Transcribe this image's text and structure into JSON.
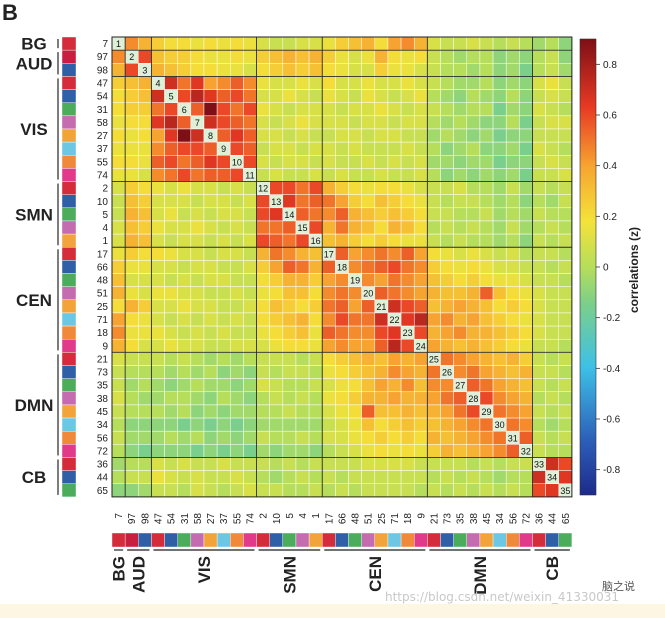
{
  "panel_label": "B",
  "colorbar": {
    "label": "correlations (z)",
    "ticks": [
      0.8,
      0.6,
      0.4,
      0.2,
      0,
      -0.2,
      -0.4,
      -0.6,
      -0.8
    ],
    "tick_labels": [
      "0.8",
      "0.6",
      "0.4",
      "0.2",
      "0",
      "-0.2",
      "-0.4",
      "-0.6",
      "-0.8"
    ],
    "range": [
      -0.9,
      0.9
    ]
  },
  "groups": [
    {
      "name": "BG",
      "count": 1
    },
    {
      "name": "AUD",
      "count": 2
    },
    {
      "name": "VIS",
      "count": 8
    },
    {
      "name": "SMN",
      "count": 5
    },
    {
      "name": "CEN",
      "count": 8
    },
    {
      "name": "DMN",
      "count": 8
    },
    {
      "name": "CB",
      "count": 3
    }
  ],
  "component_colors": [
    "#d42c3b",
    "#c81e40",
    "#2f5fa7",
    "#d42c3b",
    "#2f5fa7",
    "#4bad5b",
    "#c56cb1",
    "#f2a43a",
    "#6cc7e4",
    "#f08a3a",
    "#e23a8a",
    "#d42c3b",
    "#2f5fa7",
    "#4bad5b",
    "#c56cb1",
    "#f2a43a",
    "#d42c3b",
    "#2f5fa7",
    "#4bad5b",
    "#c56cb1",
    "#f2a43a",
    "#6cc7e4",
    "#f08a3a",
    "#e23a8a",
    "#d42c3b",
    "#2f5fa7",
    "#4bad5b",
    "#c56cb1",
    "#f2a43a",
    "#6cc7e4",
    "#f08a3a",
    "#e23a8a",
    "#d42c3b",
    "#2f5fa7",
    "#4bad5b"
  ],
  "watermark": "https://blog.csdn.net/weixin_41330031",
  "brand_text": "脑之说",
  "chart_data": {
    "type": "heatmap",
    "labels": [
      "7",
      "97",
      "98",
      "47",
      "54",
      "31",
      "58",
      "27",
      "37",
      "55",
      "74",
      "2",
      "10",
      "5",
      "4",
      "1",
      "17",
      "66",
      "48",
      "51",
      "25",
      "71",
      "18",
      "9",
      "21",
      "73",
      "35",
      "38",
      "45",
      "34",
      "56",
      "72",
      "36",
      "44",
      "65"
    ],
    "diagonal_labels": [
      "1",
      "2",
      "3",
      "4",
      "5",
      "6",
      "7",
      "8",
      "9",
      "10",
      "11",
      "12",
      "13",
      "14",
      "15",
      "16",
      "17",
      "18",
      "19",
      "20",
      "21",
      "22",
      "23",
      "24",
      "25",
      "26",
      "27",
      "28",
      "29",
      "30",
      "31",
      "32",
      "33",
      "34",
      "35"
    ],
    "value_range": [
      -0.9,
      0.9
    ],
    "matrix": [
      [
        null,
        0.45,
        0.35,
        0.25,
        0.2,
        0.2,
        0.15,
        0.2,
        0.15,
        0.2,
        0.15,
        0.1,
        0.05,
        0.05,
        0.1,
        0.1,
        0.15,
        0.25,
        0.3,
        0.35,
        0.2,
        0.4,
        0.45,
        0.35,
        0.1,
        0.05,
        0.05,
        0.1,
        0.05,
        0,
        0.05,
        0,
        -0.05,
        0,
        -0.1
      ],
      [
        0.45,
        null,
        0.6,
        0.3,
        0.25,
        0.25,
        0.2,
        0.15,
        0.15,
        0.2,
        0.15,
        0.25,
        0.3,
        0.35,
        0.3,
        0.35,
        0.25,
        0.15,
        0.1,
        0.15,
        0.35,
        0.2,
        0.15,
        0.2,
        0.05,
        0,
        -0.05,
        0,
        0,
        -0.1,
        -0.05,
        -0.1,
        0,
        0.05,
        -0.1
      ],
      [
        0.35,
        0.6,
        null,
        0.35,
        0.3,
        0.25,
        0.2,
        0.2,
        0.15,
        0.15,
        0.1,
        0.2,
        0.25,
        0.3,
        0.25,
        0.3,
        0.2,
        0.15,
        0.1,
        0.1,
        0.25,
        0.15,
        0.15,
        0.1,
        0.05,
        0,
        0,
        -0.05,
        0,
        -0.1,
        -0.05,
        -0.15,
        0,
        0.05,
        -0.05
      ],
      [
        0.25,
        0.3,
        0.35,
        null,
        0.7,
        0.5,
        0.65,
        0.4,
        0.45,
        0.55,
        0.45,
        0.15,
        0.1,
        0.1,
        0.15,
        0.1,
        0.2,
        0.1,
        0.1,
        0.15,
        0.1,
        0.1,
        0.15,
        0.1,
        0.05,
        0,
        -0.05,
        -0.05,
        0,
        -0.1,
        -0.05,
        -0.1,
        0.1,
        0.15,
        0.05
      ],
      [
        0.2,
        0.25,
        0.3,
        0.7,
        null,
        0.6,
        0.75,
        0.65,
        0.55,
        0.6,
        0.5,
        0.1,
        0.1,
        0.15,
        0.1,
        0.05,
        0.15,
        0.1,
        0.05,
        0.15,
        0.1,
        0.05,
        0.1,
        0.15,
        0,
        -0.05,
        -0.1,
        0,
        -0.05,
        -0.1,
        0,
        -0.1,
        0.05,
        0.1,
        0.05
      ],
      [
        0.2,
        0.25,
        0.25,
        0.5,
        0.6,
        null,
        0.55,
        0.9,
        0.6,
        0.5,
        0.6,
        0.15,
        0.1,
        0.05,
        0.1,
        0.1,
        0.1,
        0.05,
        0.1,
        0.1,
        0.15,
        0.1,
        0.05,
        0.1,
        0.05,
        0,
        -0.05,
        0,
        0,
        -0.15,
        -0.05,
        -0.1,
        0.1,
        0.05,
        0
      ],
      [
        0.15,
        0.2,
        0.2,
        0.65,
        0.75,
        0.55,
        null,
        0.7,
        0.6,
        0.55,
        0.5,
        0.1,
        0.05,
        0.1,
        0.15,
        0.1,
        0.1,
        0.1,
        0.05,
        0.1,
        0.1,
        0.05,
        0.1,
        0.1,
        0,
        -0.05,
        0,
        -0.05,
        -0.1,
        -0.1,
        0,
        -0.15,
        0.05,
        0.1,
        0.1
      ],
      [
        0.2,
        0.15,
        0.2,
        0.4,
        0.65,
        0.9,
        0.7,
        null,
        0.55,
        0.65,
        0.55,
        0.1,
        0.1,
        0.05,
        0.1,
        0.05,
        0.05,
        0.1,
        0.1,
        0.05,
        0.1,
        0.1,
        0.05,
        0.05,
        -0.05,
        0,
        -0.05,
        -0.1,
        -0.05,
        -0.15,
        -0.1,
        -0.1,
        0.05,
        0.05,
        0.05
      ],
      [
        0.15,
        0.15,
        0.15,
        0.45,
        0.55,
        0.6,
        0.6,
        0.55,
        null,
        0.6,
        0.55,
        0.05,
        0.1,
        0.1,
        0.05,
        0.1,
        0.1,
        0.05,
        0.1,
        0.05,
        0.05,
        0.05,
        0.1,
        0.05,
        0,
        -0.1,
        -0.05,
        0,
        -0.1,
        -0.1,
        -0.05,
        -0.15,
        0.1,
        0.05,
        0
      ],
      [
        0.2,
        0.2,
        0.15,
        0.55,
        0.6,
        0.5,
        0.55,
        0.65,
        0.6,
        null,
        0.6,
        0.1,
        0.05,
        0.1,
        0.1,
        0.05,
        0.1,
        0.05,
        0.05,
        0.1,
        0.05,
        0.1,
        0.05,
        0.1,
        -0.05,
        -0.05,
        -0.1,
        -0.05,
        -0.05,
        -0.15,
        -0.1,
        -0.1,
        0.05,
        0.1,
        0.05
      ],
      [
        0.15,
        0.15,
        0.1,
        0.45,
        0.5,
        0.6,
        0.5,
        0.55,
        0.55,
        0.6,
        null,
        0.05,
        0.1,
        0.05,
        0.05,
        0.1,
        0.05,
        0.1,
        0.05,
        0.05,
        0.1,
        0.05,
        0.05,
        0.1,
        0,
        -0.1,
        -0.05,
        -0.1,
        -0.05,
        -0.1,
        -0.05,
        -0.15,
        0.05,
        0.05,
        0.1
      ],
      [
        0.1,
        0.25,
        0.2,
        0.15,
        0.1,
        0.15,
        0.1,
        0.1,
        0.05,
        0.1,
        0.05,
        null,
        0.6,
        0.6,
        0.5,
        0.6,
        0.35,
        0.25,
        0.2,
        0.15,
        0.2,
        0.2,
        0.15,
        0.1,
        0.05,
        0.05,
        0.1,
        0,
        0,
        -0.05,
        0.05,
        -0.05,
        0.05,
        0,
        0.05
      ],
      [
        0.05,
        0.3,
        0.25,
        0.1,
        0.1,
        0.1,
        0.05,
        0.1,
        0.1,
        0.05,
        0.1,
        0.6,
        null,
        0.65,
        0.5,
        0.55,
        0.5,
        0.4,
        0.25,
        0.2,
        0.3,
        0.25,
        0.2,
        0.15,
        0.05,
        0,
        0.05,
        0.05,
        0,
        -0.05,
        0,
        -0.1,
        0,
        -0.05,
        0.05
      ],
      [
        0.05,
        0.35,
        0.3,
        0.1,
        0.15,
        0.05,
        0.1,
        0.05,
        0.1,
        0.1,
        0.05,
        0.6,
        0.65,
        null,
        0.55,
        0.5,
        0.45,
        0.55,
        0.35,
        0.3,
        0.25,
        0.3,
        0.25,
        0.2,
        0.05,
        0.05,
        0,
        0,
        0.05,
        -0.05,
        0,
        -0.05,
        0.05,
        0,
        0
      ],
      [
        0.1,
        0.3,
        0.25,
        0.15,
        0.1,
        0.1,
        0.15,
        0.1,
        0.05,
        0.1,
        0.05,
        0.5,
        0.5,
        0.55,
        null,
        0.6,
        0.35,
        0.5,
        0.35,
        0.3,
        0.2,
        0.35,
        0.3,
        0.2,
        0,
        0.05,
        0,
        0.05,
        0,
        -0.05,
        0.05,
        -0.05,
        0,
        0.05,
        0
      ],
      [
        0.1,
        0.35,
        0.3,
        0.1,
        0.05,
        0.1,
        0.1,
        0.05,
        0.1,
        0.05,
        0.1,
        0.6,
        0.55,
        0.5,
        0.6,
        null,
        0.3,
        0.35,
        0.25,
        0.2,
        0.25,
        0.2,
        0.15,
        0.15,
        0.05,
        0,
        0.05,
        0,
        0,
        -0.05,
        0,
        -0.1,
        0.05,
        0,
        0.05
      ],
      [
        0.15,
        0.25,
        0.2,
        0.2,
        0.15,
        0.1,
        0.1,
        0.05,
        0.1,
        0.1,
        0.05,
        0.35,
        0.5,
        0.45,
        0.35,
        0.3,
        null,
        0.55,
        0.4,
        0.45,
        0.5,
        0.45,
        0.55,
        0.4,
        0.2,
        0.15,
        0.1,
        0.15,
        0.1,
        0.05,
        0.1,
        0,
        0.05,
        0.05,
        0
      ],
      [
        0.25,
        0.15,
        0.15,
        0.1,
        0.1,
        0.05,
        0.1,
        0.1,
        0.05,
        0.05,
        0.1,
        0.25,
        0.4,
        0.55,
        0.5,
        0.35,
        0.55,
        null,
        0.45,
        0.5,
        0.55,
        0.6,
        0.5,
        0.45,
        0.25,
        0.2,
        0.15,
        0.2,
        0.15,
        0.1,
        0.1,
        0.05,
        0.05,
        0,
        0.05
      ],
      [
        0.3,
        0.1,
        0.1,
        0.1,
        0.05,
        0.1,
        0.05,
        0.1,
        0.1,
        0.05,
        0.05,
        0.2,
        0.25,
        0.35,
        0.35,
        0.25,
        0.4,
        0.45,
        null,
        0.45,
        0.4,
        0.5,
        0.45,
        0.4,
        0.3,
        0.25,
        0.2,
        0.25,
        0.2,
        0.15,
        0.15,
        0.1,
        0.05,
        0.05,
        0
      ],
      [
        0.35,
        0.15,
        0.1,
        0.15,
        0.15,
        0.1,
        0.1,
        0.05,
        0.05,
        0.1,
        0.05,
        0.15,
        0.2,
        0.3,
        0.3,
        0.2,
        0.45,
        0.5,
        0.45,
        null,
        0.55,
        0.5,
        0.45,
        0.4,
        0.35,
        0.3,
        0.3,
        0.35,
        0.55,
        0.3,
        0.2,
        0.15,
        0.1,
        0.05,
        0.05
      ],
      [
        0.2,
        0.35,
        0.25,
        0.1,
        0.1,
        0.15,
        0.1,
        0.1,
        0.05,
        0.05,
        0.1,
        0.2,
        0.3,
        0.25,
        0.2,
        0.25,
        0.5,
        0.55,
        0.4,
        0.55,
        null,
        0.7,
        0.6,
        0.55,
        0.3,
        0.35,
        0.4,
        0.35,
        0.3,
        0.2,
        0.25,
        0.2,
        0.1,
        0.05,
        0.05
      ],
      [
        0.4,
        0.2,
        0.15,
        0.1,
        0.05,
        0.1,
        0.05,
        0.1,
        0.05,
        0.1,
        0.05,
        0.2,
        0.25,
        0.3,
        0.35,
        0.2,
        0.45,
        0.6,
        0.5,
        0.5,
        0.7,
        null,
        0.65,
        0.75,
        0.4,
        0.45,
        0.35,
        0.4,
        0.3,
        0.25,
        0.2,
        0.15,
        0.1,
        0.05,
        0.05
      ],
      [
        0.45,
        0.15,
        0.15,
        0.15,
        0.1,
        0.05,
        0.1,
        0.05,
        0.1,
        0.05,
        0.05,
        0.15,
        0.2,
        0.25,
        0.3,
        0.15,
        0.55,
        0.5,
        0.45,
        0.45,
        0.6,
        0.65,
        null,
        0.6,
        0.35,
        0.4,
        0.45,
        0.35,
        0.35,
        0.3,
        0.25,
        0.2,
        0.1,
        0.05,
        0.05
      ],
      [
        0.35,
        0.2,
        0.1,
        0.1,
        0.15,
        0.1,
        0.1,
        0.05,
        0.05,
        0.1,
        0.1,
        0.1,
        0.15,
        0.2,
        0.2,
        0.15,
        0.4,
        0.45,
        0.4,
        0.4,
        0.55,
        0.75,
        0.6,
        null,
        0.4,
        0.35,
        0.3,
        0.35,
        0.3,
        0.25,
        0.2,
        0.15,
        0.05,
        0.05,
        0
      ],
      [
        0.1,
        0.05,
        0.05,
        0.05,
        0,
        0.05,
        0,
        -0.05,
        0,
        -0.05,
        0,
        0.05,
        0.05,
        0.05,
        0,
        0.05,
        0.2,
        0.25,
        0.3,
        0.35,
        0.3,
        0.4,
        0.35,
        0.4,
        null,
        0.5,
        0.45,
        0.4,
        0.35,
        0.3,
        0.35,
        0.25,
        0.05,
        0,
        0.05
      ],
      [
        0.05,
        0,
        0,
        0,
        -0.05,
        0,
        -0.05,
        0,
        -0.1,
        -0.05,
        -0.1,
        0.05,
        0,
        0.05,
        0.05,
        0,
        0.15,
        0.2,
        0.25,
        0.3,
        0.35,
        0.45,
        0.4,
        0.35,
        0.5,
        null,
        0.45,
        0.5,
        0.4,
        0.35,
        0.3,
        0.35,
        0.05,
        0.05,
        0
      ],
      [
        0.05,
        -0.05,
        0,
        -0.05,
        -0.1,
        -0.05,
        0,
        -0.05,
        -0.05,
        -0.1,
        -0.05,
        0.1,
        0.05,
        0,
        0,
        0.05,
        0.1,
        0.15,
        0.2,
        0.3,
        0.4,
        0.35,
        0.45,
        0.3,
        0.45,
        0.45,
        null,
        0.55,
        0.5,
        0.4,
        0.35,
        0.3,
        0.05,
        0,
        0.05
      ],
      [
        0.1,
        0,
        -0.05,
        -0.05,
        0,
        0,
        -0.05,
        -0.1,
        0,
        -0.05,
        -0.1,
        0,
        0.05,
        0,
        0.05,
        0,
        0.15,
        0.2,
        0.25,
        0.35,
        0.35,
        0.4,
        0.35,
        0.35,
        0.4,
        0.5,
        0.55,
        null,
        0.6,
        0.45,
        0.4,
        0.35,
        0,
        0.05,
        0
      ],
      [
        0.05,
        0,
        0,
        0,
        -0.05,
        0,
        -0.1,
        -0.05,
        -0.1,
        -0.05,
        -0.05,
        0,
        0,
        0.05,
        0,
        0,
        0.1,
        0.15,
        0.2,
        0.55,
        0.3,
        0.3,
        0.35,
        0.3,
        0.35,
        0.4,
        0.5,
        0.6,
        null,
        0.5,
        0.45,
        0.4,
        0.05,
        0,
        0.05
      ],
      [
        0,
        -0.1,
        -0.1,
        -0.1,
        -0.1,
        -0.15,
        -0.1,
        -0.15,
        -0.1,
        -0.15,
        -0.1,
        -0.05,
        -0.05,
        -0.05,
        -0.05,
        -0.05,
        0.05,
        0.1,
        0.15,
        0.3,
        0.2,
        0.25,
        0.3,
        0.25,
        0.3,
        0.35,
        0.4,
        0.45,
        0.5,
        null,
        0.5,
        0.45,
        0,
        -0.05,
        0
      ],
      [
        0.05,
        -0.05,
        -0.05,
        -0.05,
        0,
        -0.05,
        0,
        -0.1,
        -0.05,
        -0.1,
        -0.05,
        0.05,
        0,
        0,
        0.05,
        0,
        0.1,
        0.1,
        0.15,
        0.2,
        0.25,
        0.2,
        0.25,
        0.2,
        0.35,
        0.3,
        0.35,
        0.4,
        0.45,
        0.5,
        null,
        0.55,
        0.05,
        0,
        0.05
      ],
      [
        0,
        -0.1,
        -0.15,
        -0.1,
        -0.1,
        -0.1,
        -0.15,
        -0.1,
        -0.15,
        -0.1,
        -0.15,
        -0.05,
        -0.1,
        -0.05,
        -0.05,
        -0.1,
        0,
        0.05,
        0.1,
        0.15,
        0.2,
        0.15,
        0.2,
        0.15,
        0.25,
        0.35,
        0.3,
        0.35,
        0.4,
        0.45,
        0.55,
        null,
        0.05,
        0,
        0
      ],
      [
        -0.05,
        0,
        0,
        0.1,
        0.05,
        0.1,
        0.05,
        0.05,
        0.1,
        0.05,
        0.05,
        0.05,
        0,
        0.05,
        0,
        0.05,
        0.05,
        0.05,
        0.05,
        0.1,
        0.1,
        0.1,
        0.1,
        0.05,
        0.05,
        0.05,
        0.05,
        0,
        0.05,
        0,
        0.05,
        0.05,
        null,
        0.7,
        0.6
      ],
      [
        0,
        0.05,
        0.05,
        0.15,
        0.1,
        0.05,
        0.1,
        0.05,
        0.05,
        0.1,
        0.05,
        0,
        -0.05,
        0,
        0.05,
        0,
        0.05,
        0,
        0.05,
        0.05,
        0.05,
        0.05,
        0.05,
        0.05,
        0,
        0.05,
        0,
        0.05,
        0,
        -0.05,
        0,
        0,
        0.7,
        null,
        0.65
      ],
      [
        -0.1,
        -0.1,
        -0.05,
        0.05,
        0.05,
        0,
        0.1,
        0.05,
        0,
        0.05,
        0.1,
        0.05,
        0.05,
        0,
        0,
        0.05,
        0,
        0.05,
        0,
        0.05,
        0.05,
        0.05,
        0.05,
        0,
        0.05,
        0,
        0.05,
        0,
        0.05,
        0,
        0.05,
        0,
        0.6,
        0.65,
        null
      ]
    ]
  }
}
